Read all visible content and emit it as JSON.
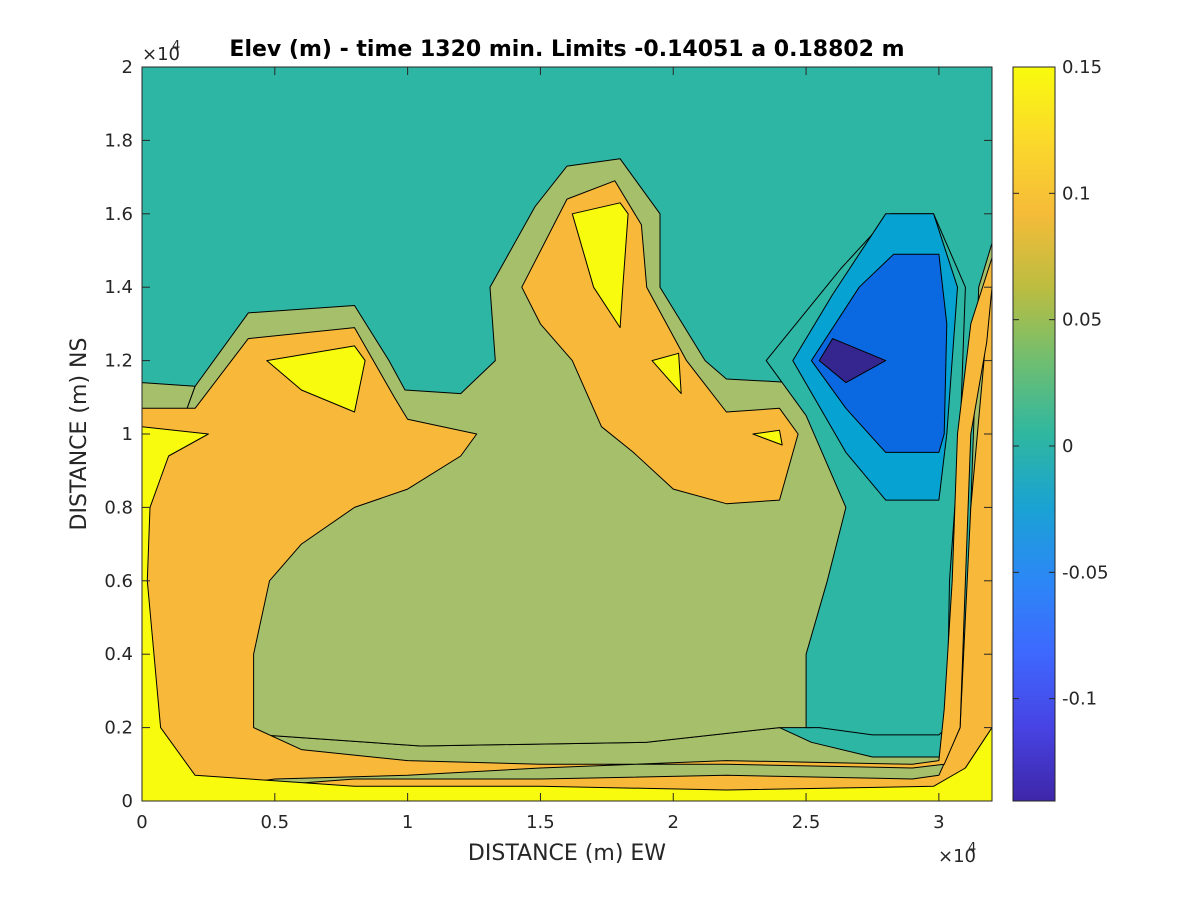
{
  "chart_data": {
    "type": "contour",
    "title": "Elev (m) - time 1320 min. Limits -0.14051 a 0.18802 m",
    "xlabel": "DISTANCE (m) EW",
    "ylabel": "DISTANCE (m) NS",
    "x_exponent": "4",
    "y_exponent": "4",
    "xlim": [
      0,
      3.2
    ],
    "ylim": [
      0,
      2
    ],
    "x_ticks": [
      "0",
      "0.5",
      "1",
      "1.5",
      "2",
      "2.5",
      "3"
    ],
    "x_tick_values": [
      0,
      0.5,
      1,
      1.5,
      2,
      2.5,
      3
    ],
    "y_ticks": [
      "0",
      "0.2",
      "0.4",
      "0.6",
      "0.8",
      "1",
      "1.2",
      "1.4",
      "1.6",
      "1.8",
      "2"
    ],
    "y_tick_values": [
      0,
      0.2,
      0.4,
      0.6,
      0.8,
      1,
      1.2,
      1.4,
      1.6,
      1.8,
      2
    ],
    "colorbar": {
      "limits": [
        -0.14051,
        0.15
      ],
      "ticks": [
        "0.15",
        "0.1",
        "0.05",
        "0",
        "-0.05",
        "-0.1"
      ],
      "tick_values": [
        0.15,
        0.1,
        0.05,
        0,
        -0.05,
        -0.1
      ],
      "colormap": [
        "#3e26a8",
        "#4743e3",
        "#3e68fe",
        "#2c87f6",
        "#1aa2d3",
        "#2fb7a0",
        "#70be70",
        "#bcbd40",
        "#f5bb39",
        "#fbd92b",
        "#f9fb0e"
      ]
    },
    "level_colors": {
      "below_-0.1": "#35268f",
      "-0.1_to_-0.05": "#0a68e0",
      "-0.05_to_0": "#06a2d2",
      "0_to_0.05": "#2db6a4",
      "0.05_to_0.1": "#a5bf6b",
      "0.1_to_0.15": "#f8b93a",
      "above_0.15": "#f9fb0e"
    },
    "regions": [
      {
        "level": "0_to_0.05",
        "points": [
          [
            0,
            0
          ],
          [
            3.2,
            0
          ],
          [
            3.2,
            2
          ],
          [
            0,
            2
          ]
        ]
      },
      {
        "level": "0.05_to_0.1",
        "points": [
          [
            0,
            0
          ],
          [
            3.2,
            0
          ],
          [
            3.2,
            1.52
          ],
          [
            3.15,
            1.4
          ],
          [
            3.12,
            0.8
          ],
          [
            3.09,
            0.2
          ],
          [
            3.06,
            0.12
          ],
          [
            2.75,
            0.12
          ],
          [
            2.52,
            0.16
          ],
          [
            2.4,
            0.2
          ],
          [
            1.9,
            0.16
          ],
          [
            1.05,
            0.15
          ],
          [
            0.45,
            0.18
          ],
          [
            0.25,
            0.23
          ],
          [
            0.15,
            0.4
          ],
          [
            0.12,
            0.8
          ],
          [
            0.16,
            1.05
          ],
          [
            0.2,
            1.13
          ],
          [
            0,
            1.14
          ]
        ]
      },
      {
        "level": "0.05_to_0.1",
        "points": [
          [
            0.2,
            1.13
          ],
          [
            0.4,
            1.33
          ],
          [
            0.8,
            1.35
          ],
          [
            0.93,
            1.2
          ],
          [
            0.99,
            1.12
          ],
          [
            1.2,
            1.11
          ],
          [
            1.33,
            1.2
          ],
          [
            1.31,
            1.4
          ],
          [
            1.48,
            1.62
          ],
          [
            1.6,
            1.73
          ],
          [
            1.8,
            1.75
          ],
          [
            1.95,
            1.6
          ],
          [
            1.95,
            1.4
          ],
          [
            2.12,
            1.2
          ],
          [
            2.2,
            1.15
          ],
          [
            2.45,
            1.14
          ],
          [
            2.62,
            1.0
          ],
          [
            2.68,
            0.8
          ],
          [
            2.6,
            0.5
          ],
          [
            2.52,
            0.2
          ],
          [
            2.4,
            0.2
          ],
          [
            1.9,
            0.16
          ],
          [
            1.05,
            0.15
          ],
          [
            0.45,
            0.18
          ],
          [
            0.25,
            0.23
          ],
          [
            0.15,
            0.4
          ],
          [
            0.12,
            0.8
          ],
          [
            0.16,
            1.05
          ]
        ]
      },
      {
        "level": "0_to_0.05",
        "points": [
          [
            2.55,
            0.2
          ],
          [
            2.5,
            0.2
          ],
          [
            2.5,
            0.4
          ],
          [
            2.58,
            0.6
          ],
          [
            2.65,
            0.8
          ],
          [
            2.5,
            1.05
          ],
          [
            2.35,
            1.2
          ],
          [
            2.63,
            1.45
          ],
          [
            2.82,
            1.6
          ],
          [
            2.98,
            1.6
          ],
          [
            3.1,
            1.4
          ],
          [
            3.08,
            1.0
          ],
          [
            3.04,
            0.6
          ],
          [
            3.03,
            0.2
          ],
          [
            3.0,
            0.18
          ],
          [
            2.75,
            0.18
          ]
        ]
      },
      {
        "level": "0.1_to_0.15",
        "points": [
          [
            0,
            0.02
          ],
          [
            0.25,
            0.03
          ],
          [
            0.8,
            0.06
          ],
          [
            1.5,
            0.06
          ],
          [
            2.2,
            0.07
          ],
          [
            2.9,
            0.06
          ],
          [
            3.0,
            0.07
          ],
          [
            3.08,
            0.2
          ],
          [
            3.1,
            0.5
          ],
          [
            3.12,
            0.8
          ],
          [
            3.17,
            1.2
          ],
          [
            3.2,
            1.48
          ],
          [
            3.2,
            0.2
          ],
          [
            3.1,
            0.09
          ],
          [
            3.02,
            0.03
          ],
          [
            2.5,
            0.03
          ],
          [
            1.5,
            0.02
          ],
          [
            0.8,
            0.03
          ],
          [
            0.4,
            0.04
          ],
          [
            0,
            0.02
          ]
        ]
      },
      {
        "level": "0.1_to_0.15",
        "points": [
          [
            0,
            0.02
          ],
          [
            0.2,
            0.03
          ],
          [
            0.5,
            0.06
          ],
          [
            1.0,
            0.07
          ],
          [
            1.5,
            0.09
          ],
          [
            2.2,
            0.11
          ],
          [
            2.9,
            0.1
          ],
          [
            3.0,
            0.11
          ],
          [
            3.02,
            0.25
          ],
          [
            3.05,
            0.6
          ],
          [
            3.07,
            1.0
          ],
          [
            3.12,
            1.3
          ],
          [
            3.2,
            1.48
          ],
          [
            3.2,
            1.4
          ],
          [
            3.18,
            1.25
          ],
          [
            3.12,
            1.0
          ],
          [
            3.1,
            0.6
          ],
          [
            3.08,
            0.2
          ],
          [
            3.02,
            0.1
          ],
          [
            2.9,
            0.09
          ],
          [
            2.2,
            0.1
          ],
          [
            1.5,
            0.1
          ],
          [
            1.0,
            0.11
          ],
          [
            0.6,
            0.14
          ],
          [
            0.42,
            0.2
          ],
          [
            0.42,
            0.4
          ],
          [
            0.48,
            0.6
          ],
          [
            0.6,
            0.7
          ],
          [
            0.8,
            0.8
          ],
          [
            1.0,
            0.85
          ],
          [
            1.2,
            0.94
          ],
          [
            1.26,
            1.0
          ],
          [
            1.0,
            1.04
          ],
          [
            0.95,
            1.1
          ],
          [
            0.8,
            1.29
          ],
          [
            0.4,
            1.26
          ],
          [
            0.2,
            1.07
          ],
          [
            0,
            1.07
          ]
        ]
      },
      {
        "level": "0.1_to_0.15",
        "points": [
          [
            1.43,
            1.4
          ],
          [
            1.6,
            1.64
          ],
          [
            1.78,
            1.69
          ],
          [
            1.88,
            1.57
          ],
          [
            1.9,
            1.4
          ],
          [
            2.05,
            1.2
          ],
          [
            2.2,
            1.06
          ],
          [
            2.4,
            1.07
          ],
          [
            2.47,
            1.0
          ],
          [
            2.4,
            0.82
          ],
          [
            2.2,
            0.81
          ],
          [
            2.0,
            0.85
          ],
          [
            1.85,
            0.95
          ],
          [
            1.73,
            1.02
          ],
          [
            1.62,
            1.2
          ],
          [
            1.5,
            1.3
          ]
        ]
      },
      {
        "level": "above_0.15",
        "points": [
          [
            0,
            0
          ],
          [
            0.25,
            0
          ],
          [
            2.9,
            0
          ],
          [
            3.0,
            0
          ],
          [
            3.2,
            0
          ],
          [
            3.2,
            0.2
          ],
          [
            3.1,
            0.09
          ],
          [
            2.98,
            0.04
          ],
          [
            2.2,
            0.03
          ],
          [
            1.5,
            0.04
          ],
          [
            0.8,
            0.04
          ],
          [
            0.2,
            0.07
          ],
          [
            0.07,
            0.2
          ],
          [
            0.02,
            0.6
          ],
          [
            0.03,
            0.8
          ],
          [
            0.1,
            0.94
          ],
          [
            0.25,
            1.0
          ],
          [
            0,
            1.02
          ]
        ]
      },
      {
        "level": "above_0.15",
        "points": [
          [
            0.47,
            1.2
          ],
          [
            0.6,
            1.12
          ],
          [
            0.8,
            1.06
          ],
          [
            0.84,
            1.2
          ],
          [
            0.8,
            1.24
          ]
        ]
      },
      {
        "level": "above_0.15",
        "points": [
          [
            1.62,
            1.6
          ],
          [
            1.8,
            1.63
          ],
          [
            1.83,
            1.6
          ],
          [
            1.81,
            1.4
          ],
          [
            1.8,
            1.29
          ],
          [
            1.7,
            1.4
          ]
        ]
      },
      {
        "level": "above_0.15",
        "points": [
          [
            1.92,
            1.2
          ],
          [
            2.02,
            1.22
          ],
          [
            2.03,
            1.11
          ]
        ]
      },
      {
        "level": "above_0.15",
        "points": [
          [
            2.3,
            1.0
          ],
          [
            2.4,
            1.01
          ],
          [
            2.41,
            0.97
          ]
        ]
      },
      {
        "level": "-0.05_to_0",
        "points": [
          [
            2.45,
            1.2
          ],
          [
            2.6,
            1.38
          ],
          [
            2.8,
            1.6
          ],
          [
            2.98,
            1.6
          ],
          [
            3.07,
            1.4
          ],
          [
            3.03,
            1.0
          ],
          [
            3.0,
            0.82
          ],
          [
            2.8,
            0.82
          ],
          [
            2.65,
            0.95
          ]
        ]
      },
      {
        "level": "-0.1_to_-0.05",
        "points": [
          [
            2.52,
            1.2
          ],
          [
            2.7,
            1.4
          ],
          [
            2.83,
            1.49
          ],
          [
            3.0,
            1.49
          ],
          [
            3.03,
            1.3
          ],
          [
            3.02,
            1.0
          ],
          [
            3.0,
            0.95
          ],
          [
            2.8,
            0.95
          ],
          [
            2.65,
            1.07
          ]
        ]
      },
      {
        "level": "below_-0.1",
        "points": [
          [
            2.55,
            1.2
          ],
          [
            2.6,
            1.26
          ],
          [
            2.8,
            1.2
          ],
          [
            2.65,
            1.14
          ]
        ]
      }
    ]
  }
}
